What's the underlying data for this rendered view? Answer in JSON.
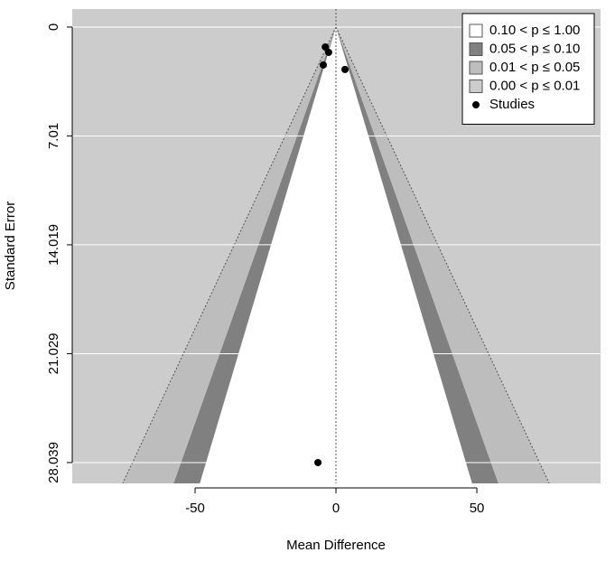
{
  "chart_data": {
    "type": "funnel",
    "x_label": "Mean Difference",
    "y_label": "Standard Error",
    "xlim": [
      -93.6,
      93.9
    ],
    "ylim": [
      29.38,
      -1.16
    ],
    "xticks": [
      -50,
      0,
      50
    ],
    "yticks": [
      0,
      7.01,
      14.019,
      21.029,
      28.039
    ],
    "grid": true,
    "refline": 0,
    "legend": "top-right",
    "contours": [
      {
        "label": "0.10 < p ≤ 1.00",
        "p": [
          0.1,
          1.0
        ],
        "color": "#ffffff"
      },
      {
        "label": "0.05 < p ≤ 0.10",
        "p": [
          0.05,
          0.1
        ],
        "color": "#808080"
      },
      {
        "label": "0.01 < p ≤ 0.05",
        "p": [
          0.01,
          0.05
        ],
        "color": "#bdbdbd"
      },
      {
        "label": "0.00 < p ≤ 0.01",
        "p": [
          0.0,
          0.01
        ],
        "color": "#cccccc"
      }
    ],
    "series": [
      {
        "name": "Studies",
        "color": "#000000",
        "x": [
          -3.8,
          -2.6,
          -4.5,
          3.2,
          -6.4
        ],
        "values": [
          1.28,
          1.63,
          2.44,
          2.73,
          28.04
        ]
      }
    ]
  }
}
